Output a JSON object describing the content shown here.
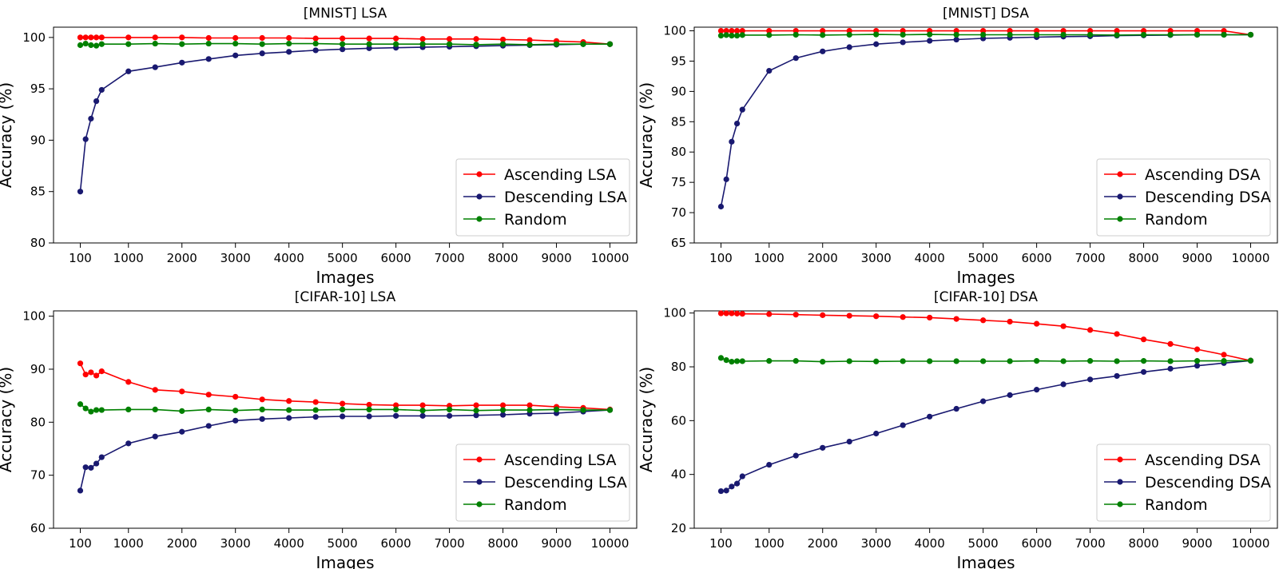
{
  "figure": {
    "legend_location": "lower right"
  },
  "chart_data": [
    {
      "type": "line",
      "title": "[MNIST] LSA",
      "xlabel": "Images",
      "ylabel": "Accuracy (%)",
      "xlim": [
        -400,
        10500
      ],
      "ylim": [
        80,
        101
      ],
      "xticks": [
        100,
        1000,
        2000,
        3000,
        4000,
        5000,
        6000,
        7000,
        8000,
        9000,
        10000
      ],
      "yticks": [
        80,
        85,
        90,
        95,
        100
      ],
      "x": [
        100,
        200,
        300,
        400,
        500,
        1000,
        1500,
        2000,
        2500,
        3000,
        3500,
        4000,
        4500,
        5000,
        5500,
        6000,
        6500,
        7000,
        7500,
        8000,
        8500,
        9000,
        9500,
        10000
      ],
      "series": [
        {
          "name": "Ascending LSA",
          "color": "#ff0000",
          "values": [
            100,
            100,
            100,
            100,
            100,
            100,
            100,
            100,
            99.95,
            99.95,
            99.95,
            99.95,
            99.9,
            99.9,
            99.9,
            99.9,
            99.85,
            99.85,
            99.85,
            99.8,
            99.75,
            99.65,
            99.55,
            99.35
          ]
        },
        {
          "name": "Descending LSA",
          "color": "#191970",
          "values": [
            85,
            90.1,
            92.1,
            93.8,
            94.9,
            96.7,
            97.1,
            97.55,
            97.9,
            98.25,
            98.45,
            98.6,
            98.75,
            98.85,
            98.95,
            99.0,
            99.05,
            99.1,
            99.15,
            99.2,
            99.25,
            99.3,
            99.35,
            99.35
          ]
        },
        {
          "name": "Random",
          "color": "#008000",
          "values": [
            99.25,
            99.4,
            99.25,
            99.2,
            99.35,
            99.35,
            99.4,
            99.35,
            99.4,
            99.4,
            99.35,
            99.4,
            99.4,
            99.35,
            99.35,
            99.35,
            99.35,
            99.35,
            99.3,
            99.35,
            99.3,
            99.35,
            99.35,
            99.35
          ]
        }
      ],
      "grid": false,
      "legend_location": "lower right"
    },
    {
      "type": "line",
      "title": "[MNIST] DSA",
      "xlabel": "Images",
      "ylabel": "Accuracy (%)",
      "xlim": [
        -400,
        10500
      ],
      "ylim": [
        65,
        100.6
      ],
      "xticks": [
        100,
        1000,
        2000,
        3000,
        4000,
        5000,
        6000,
        7000,
        8000,
        9000,
        10000
      ],
      "yticks": [
        65,
        70,
        75,
        80,
        85,
        90,
        95,
        100
      ],
      "x": [
        100,
        200,
        300,
        400,
        500,
        1000,
        1500,
        2000,
        2500,
        3000,
        3500,
        4000,
        4500,
        5000,
        5500,
        6000,
        6500,
        7000,
        7500,
        8000,
        8500,
        9000,
        9500,
        10000
      ],
      "series": [
        {
          "name": "Ascending DSA",
          "color": "#ff0000",
          "values": [
            100,
            100,
            100,
            100,
            100,
            100,
            100,
            100,
            100,
            100,
            100,
            100,
            100,
            100,
            100,
            100,
            100,
            100,
            100,
            100,
            100,
            100,
            100,
            99.35
          ]
        },
        {
          "name": "Descending DSA",
          "color": "#191970",
          "values": [
            71,
            75.5,
            81.7,
            84.7,
            87,
            93.4,
            95.5,
            96.6,
            97.3,
            97.8,
            98.1,
            98.35,
            98.55,
            98.75,
            98.85,
            98.95,
            99.05,
            99.1,
            99.2,
            99.25,
            99.3,
            99.35,
            99.35,
            99.35
          ]
        },
        {
          "name": "Random",
          "color": "#008000",
          "values": [
            99.2,
            99.3,
            99.2,
            99.2,
            99.3,
            99.3,
            99.35,
            99.3,
            99.35,
            99.4,
            99.35,
            99.4,
            99.35,
            99.35,
            99.35,
            99.35,
            99.35,
            99.35,
            99.3,
            99.35,
            99.35,
            99.35,
            99.35,
            99.35
          ]
        }
      ],
      "grid": false,
      "legend_location": "lower right"
    },
    {
      "type": "line",
      "title": "[CIFAR-10] LSA",
      "xlabel": "Images",
      "ylabel": "Accuracy (%)",
      "xlim": [
        -400,
        10500
      ],
      "ylim": [
        60,
        101
      ],
      "xticks": [
        100,
        1000,
        2000,
        3000,
        4000,
        5000,
        6000,
        7000,
        8000,
        9000,
        10000
      ],
      "yticks": [
        60,
        70,
        80,
        90,
        100
      ],
      "x": [
        100,
        200,
        300,
        400,
        500,
        1000,
        1500,
        2000,
        2500,
        3000,
        3500,
        4000,
        4500,
        5000,
        5500,
        6000,
        6500,
        7000,
        7500,
        8000,
        8500,
        9000,
        9500,
        10000
      ],
      "series": [
        {
          "name": "Ascending LSA",
          "color": "#ff0000",
          "values": [
            91.1,
            89,
            89.4,
            88.8,
            89.6,
            87.6,
            86.1,
            85.8,
            85.2,
            84.8,
            84.3,
            84.0,
            83.8,
            83.5,
            83.3,
            83.2,
            83.2,
            83.1,
            83.2,
            83.2,
            83.2,
            82.9,
            82.7,
            82.4
          ]
        },
        {
          "name": "Descending LSA",
          "color": "#191970",
          "values": [
            67.1,
            71.5,
            71.4,
            72.2,
            73.4,
            76.0,
            77.3,
            78.2,
            79.3,
            80.3,
            80.6,
            80.8,
            81.0,
            81.1,
            81.1,
            81.2,
            81.2,
            81.2,
            81.3,
            81.4,
            81.6,
            81.7,
            82.0,
            82.3
          ]
        },
        {
          "name": "Random",
          "color": "#008000",
          "values": [
            83.4,
            82.6,
            82.0,
            82.3,
            82.3,
            82.4,
            82.4,
            82.1,
            82.4,
            82.2,
            82.4,
            82.3,
            82.3,
            82.4,
            82.4,
            82.4,
            82.2,
            82.4,
            82.2,
            82.3,
            82.3,
            82.4,
            82.3,
            82.3
          ]
        }
      ],
      "grid": false,
      "legend_location": "lower right"
    },
    {
      "type": "line",
      "title": "[CIFAR-10] DSA",
      "xlabel": "Images",
      "ylabel": "Accuracy (%)",
      "xlim": [
        -400,
        10500
      ],
      "ylim": [
        20,
        100.8
      ],
      "xticks": [
        100,
        1000,
        2000,
        3000,
        4000,
        5000,
        6000,
        7000,
        8000,
        9000,
        10000
      ],
      "yticks": [
        20,
        40,
        60,
        80,
        100
      ],
      "x": [
        100,
        200,
        300,
        400,
        500,
        1000,
        1500,
        2000,
        2500,
        3000,
        3500,
        4000,
        4500,
        5000,
        5500,
        6000,
        6500,
        7000,
        7500,
        8000,
        8500,
        9000,
        9500,
        10000
      ],
      "series": [
        {
          "name": "Ascending DSA",
          "color": "#ff0000",
          "values": [
            99.9,
            99.9,
            99.9,
            99.8,
            99.7,
            99.6,
            99.4,
            99.2,
            99.0,
            98.8,
            98.5,
            98.3,
            97.8,
            97.3,
            96.8,
            96.0,
            95.1,
            93.7,
            92.2,
            90.2,
            88.5,
            86.5,
            84.5,
            82.3
          ]
        },
        {
          "name": "Descending DSA",
          "color": "#191970",
          "values": [
            33.8,
            34.0,
            35.5,
            36.6,
            39.3,
            43.6,
            47.0,
            49.9,
            52.2,
            55.2,
            58.3,
            61.5,
            64.4,
            67.2,
            69.5,
            71.5,
            73.5,
            75.3,
            76.6,
            78.1,
            79.3,
            80.4,
            81.4,
            82.3
          ]
        },
        {
          "name": "Random",
          "color": "#008000",
          "values": [
            83.3,
            82.5,
            81.9,
            82.1,
            82.1,
            82.2,
            82.2,
            81.9,
            82.1,
            82.0,
            82.1,
            82.1,
            82.1,
            82.1,
            82.1,
            82.2,
            82.1,
            82.2,
            82.1,
            82.2,
            82.1,
            82.2,
            82.2,
            82.3
          ]
        }
      ],
      "grid": false,
      "legend_location": "lower right"
    }
  ]
}
